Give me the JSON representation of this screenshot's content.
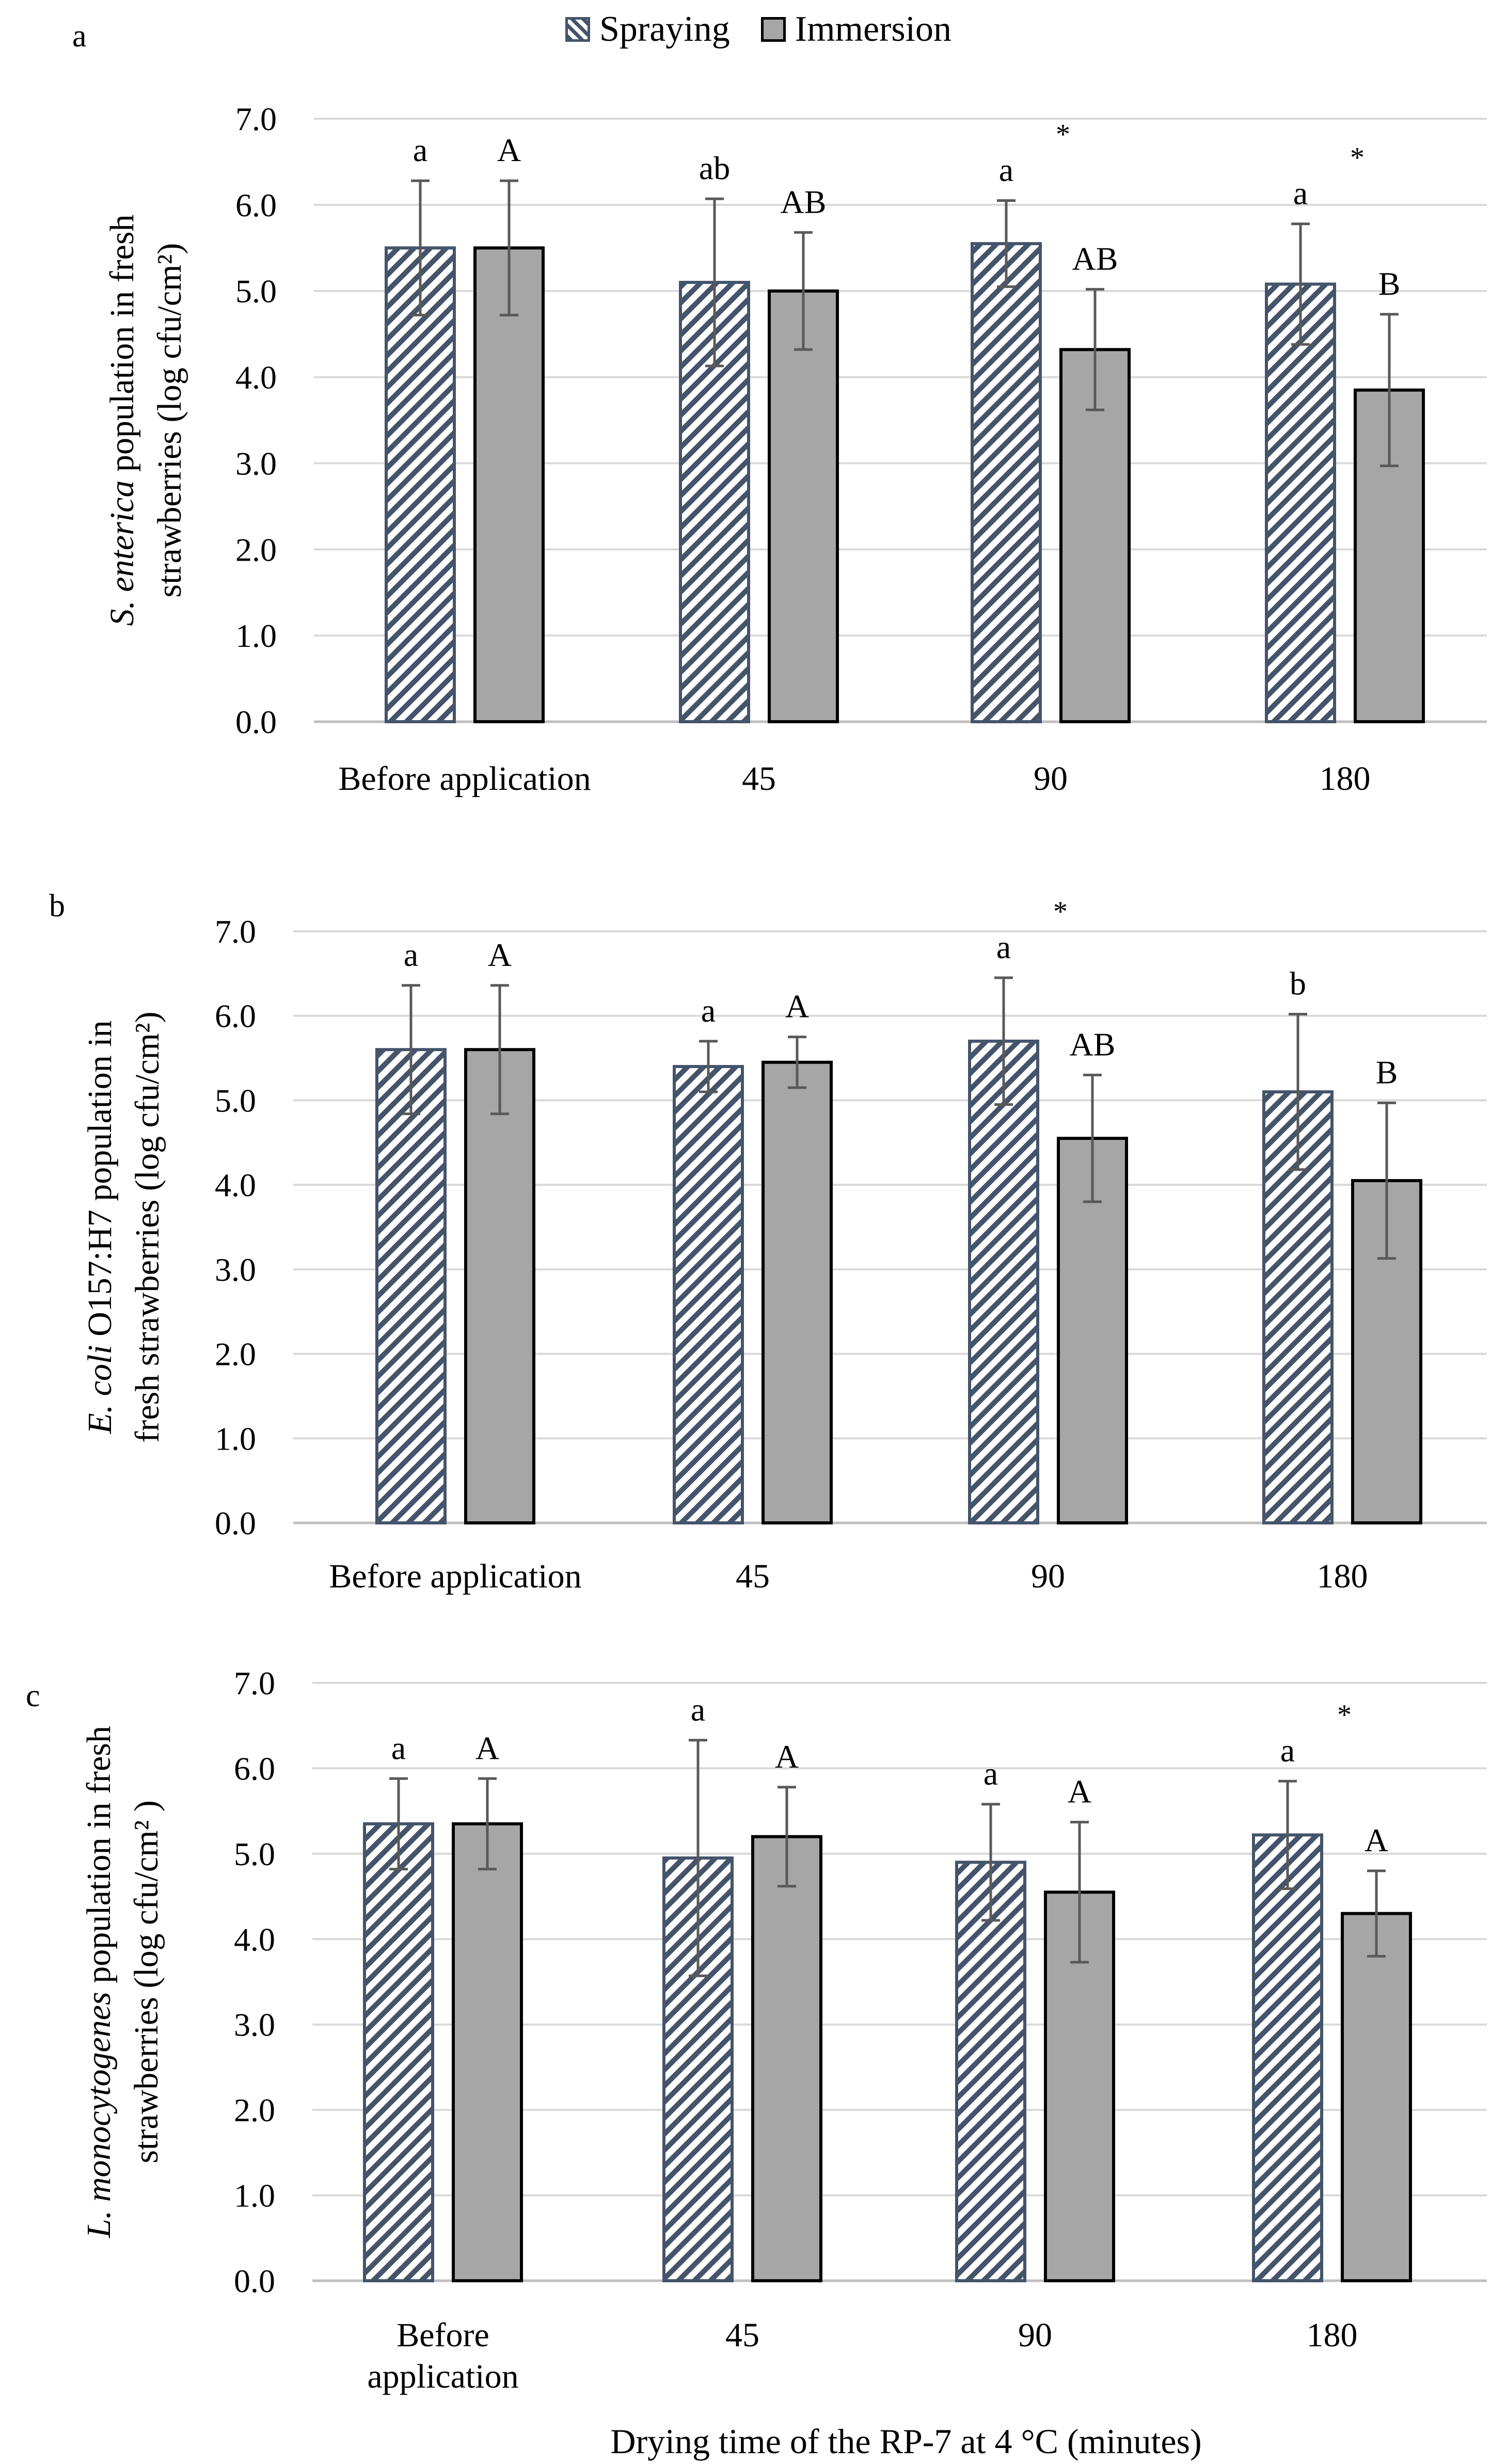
{
  "legend": {
    "spraying": "Spraying",
    "immersion": "Immersion"
  },
  "colors": {
    "spraying_stroke": "#44546a",
    "immersion_fill": "#a6a6a6",
    "immersion_stroke": "#000000",
    "grid": "#d9d9d9"
  },
  "x_axis_title": "Drying time of the RP-7 at 4 °C (minutes)",
  "chart_data": [
    {
      "panel_label": "a",
      "type": "bar",
      "ylabel_lines": [
        "S. enterica population in fresh",
        "strawberries (log cfu/cm²)"
      ],
      "ylim": [
        0,
        7
      ],
      "yticks": [
        "0.0",
        "1.0",
        "2.0",
        "3.0",
        "4.0",
        "5.0",
        "6.0",
        "7.0"
      ],
      "categories": [
        [
          "Before application"
        ],
        [
          "45"
        ],
        [
          "90"
        ],
        [
          "180"
        ]
      ],
      "series": [
        {
          "name": "Spraying",
          "values": [
            5.5,
            5.1,
            5.55,
            5.08
          ],
          "errors": [
            0.78,
            0.97,
            0.5,
            0.7
          ],
          "letters": [
            "a",
            "ab",
            "a",
            "a"
          ]
        },
        {
          "name": "Immersion",
          "values": [
            5.5,
            5.0,
            4.32,
            3.85
          ],
          "errors": [
            0.78,
            0.68,
            0.7,
            0.88
          ],
          "letters": [
            "A",
            "AB",
            "AB",
            "B"
          ]
        }
      ],
      "significant": [
        false,
        false,
        true,
        true
      ]
    },
    {
      "panel_label": "b",
      "type": "bar",
      "ylabel_lines": [
        "E. coli O157:H7 population in",
        "fresh strawberries (log cfu/cm²)"
      ],
      "ylim": [
        0,
        7
      ],
      "yticks": [
        "0.0",
        "1.0",
        "2.0",
        "3.0",
        "4.0",
        "5.0",
        "6.0",
        "7.0"
      ],
      "categories": [
        [
          "Before application"
        ],
        [
          "45"
        ],
        [
          "90"
        ],
        [
          "180"
        ]
      ],
      "series": [
        {
          "name": "Spraying",
          "values": [
            5.6,
            5.4,
            5.7,
            5.1
          ],
          "errors": [
            0.76,
            0.3,
            0.75,
            0.92
          ],
          "letters": [
            "a",
            "a",
            "a",
            "b"
          ]
        },
        {
          "name": "Immersion",
          "values": [
            5.6,
            5.45,
            4.55,
            4.05
          ],
          "errors": [
            0.76,
            0.3,
            0.75,
            0.92
          ],
          "letters": [
            "A",
            "A",
            "AB",
            "B"
          ]
        }
      ],
      "significant": [
        false,
        false,
        true,
        false
      ]
    },
    {
      "panel_label": "c",
      "type": "bar",
      "ylabel_lines": [
        "L. monocytogenes population in fresh",
        "strawberries (log cfu/cm² )"
      ],
      "ylim": [
        0,
        7
      ],
      "yticks": [
        "0.0",
        "1.0",
        "2.0",
        "3.0",
        "4.0",
        "5.0",
        "6.0",
        "7.0"
      ],
      "categories": [
        [
          "Before",
          "application"
        ],
        [
          "45"
        ],
        [
          "90"
        ],
        [
          "180"
        ]
      ],
      "series": [
        {
          "name": "Spraying",
          "values": [
            5.35,
            4.95,
            4.9,
            5.22
          ],
          "errors": [
            0.53,
            1.38,
            0.68,
            0.63
          ],
          "letters": [
            "a",
            "a",
            "a",
            "a"
          ]
        },
        {
          "name": "Immersion",
          "values": [
            5.35,
            5.2,
            4.55,
            4.3
          ],
          "errors": [
            0.53,
            0.58,
            0.82,
            0.5
          ],
          "letters": [
            "A",
            "A",
            "A",
            "A"
          ]
        }
      ],
      "significant": [
        false,
        false,
        false,
        true
      ]
    }
  ]
}
